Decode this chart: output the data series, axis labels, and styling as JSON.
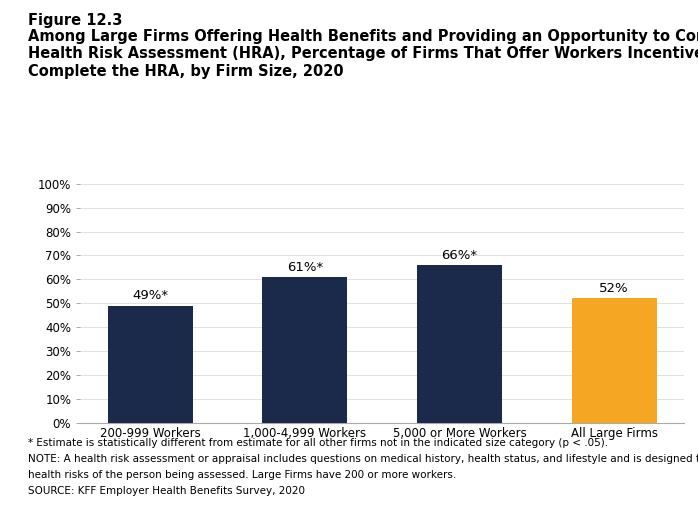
{
  "categories": [
    "200-999 Workers",
    "1,000-4,999 Workers",
    "5,000 or More Workers",
    "All Large Firms"
  ],
  "values": [
    49,
    61,
    66,
    52
  ],
  "bar_colors": [
    "#1b2a4a",
    "#1b2a4a",
    "#1b2a4a",
    "#f5a623"
  ],
  "bar_labels": [
    "49%*",
    "61%*",
    "66%*",
    "52%"
  ],
  "ylim": [
    0,
    100
  ],
  "yticks": [
    0,
    10,
    20,
    30,
    40,
    50,
    60,
    70,
    80,
    90,
    100
  ],
  "figure_label": "Figure 12.3",
  "title_line1": "Among Large Firms Offering Health Benefits and Providing an Opportunity to Complete a",
  "title_line2": "Health Risk Assessment (HRA), Percentage of Firms That Offer Workers Incentives to",
  "title_line3": "Complete the HRA, by Firm Size, 2020",
  "footnote1": "* Estimate is statistically different from estimate for all other firms not in the indicated size category (p < .05).",
  "footnote2": "NOTE: A health risk assessment or appraisal includes questions on medical history, health status, and lifestyle and is designed to identify the",
  "footnote3": "health risks of the person being assessed. Large Firms have 200 or more workers.",
  "footnote4": "SOURCE: KFF Employer Health Benefits Survey, 2020",
  "bg_color": "#ffffff",
  "bar_label_fontsize": 9.5,
  "tick_fontsize": 8.5,
  "title_fontsize": 10.5,
  "figure_label_fontsize": 10.5,
  "footnote_fontsize": 7.5
}
